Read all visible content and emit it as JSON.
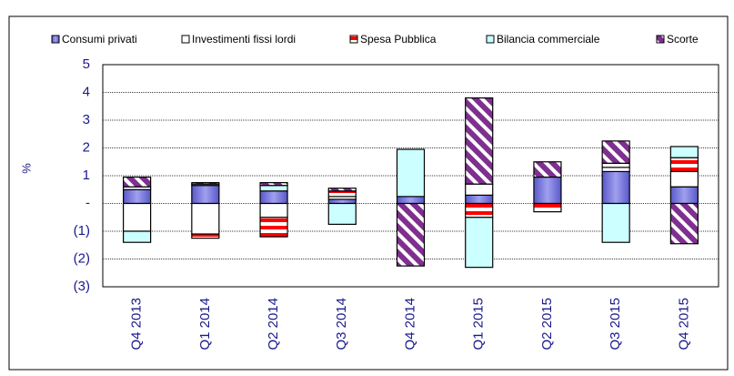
{
  "chart_data": {
    "type": "bar",
    "stacked": true,
    "y_label": "%",
    "categories": [
      "Q4 2013",
      "Q1 2014",
      "Q2 2014",
      "Q3 2014",
      "Q4 2014",
      "Q1 2015",
      "Q2 2015",
      "Q3 2015",
      "Q4 2015"
    ],
    "series": [
      {
        "name": "Consumi privati",
        "color": "#7b7bdc",
        "values": [
          0.5,
          0.65,
          0.45,
          0.15,
          0.25,
          0.3,
          0.95,
          1.15,
          0.6
        ]
      },
      {
        "name": "Investimenti fissi lordi",
        "color": "#ffffff",
        "values": [
          -1.0,
          -1.1,
          -0.5,
          0.1,
          0,
          0.4,
          0,
          0.15,
          0.55
        ]
      },
      {
        "name": "Spesa Pubblica",
        "color": "#ff0000",
        "values": [
          0.1,
          -0.15,
          -0.7,
          0.2,
          0,
          -0.5,
          -0.3,
          0.15,
          0.5
        ]
      },
      {
        "name": "Bilancia commerciale",
        "color": "#ccffff",
        "values": [
          -0.4,
          0.05,
          0.2,
          -0.75,
          1.7,
          -1.8,
          0,
          -1.4,
          0.4
        ]
      },
      {
        "name": "Scorte",
        "color": "#7f2f8f",
        "values": [
          0.35,
          0.05,
          0.1,
          0.1,
          -2.25,
          3.1,
          0.55,
          0.8,
          -1.45
        ]
      }
    ],
    "ylim": [
      -3,
      5
    ],
    "yticks": [
      {
        "value": -3,
        "label": "(3)"
      },
      {
        "value": -2,
        "label": "(2)"
      },
      {
        "value": -1,
        "label": "(1)"
      },
      {
        "value": 0,
        "label": "-"
      },
      1,
      2,
      3,
      4,
      5
    ],
    "grid": true,
    "legend": "top"
  }
}
